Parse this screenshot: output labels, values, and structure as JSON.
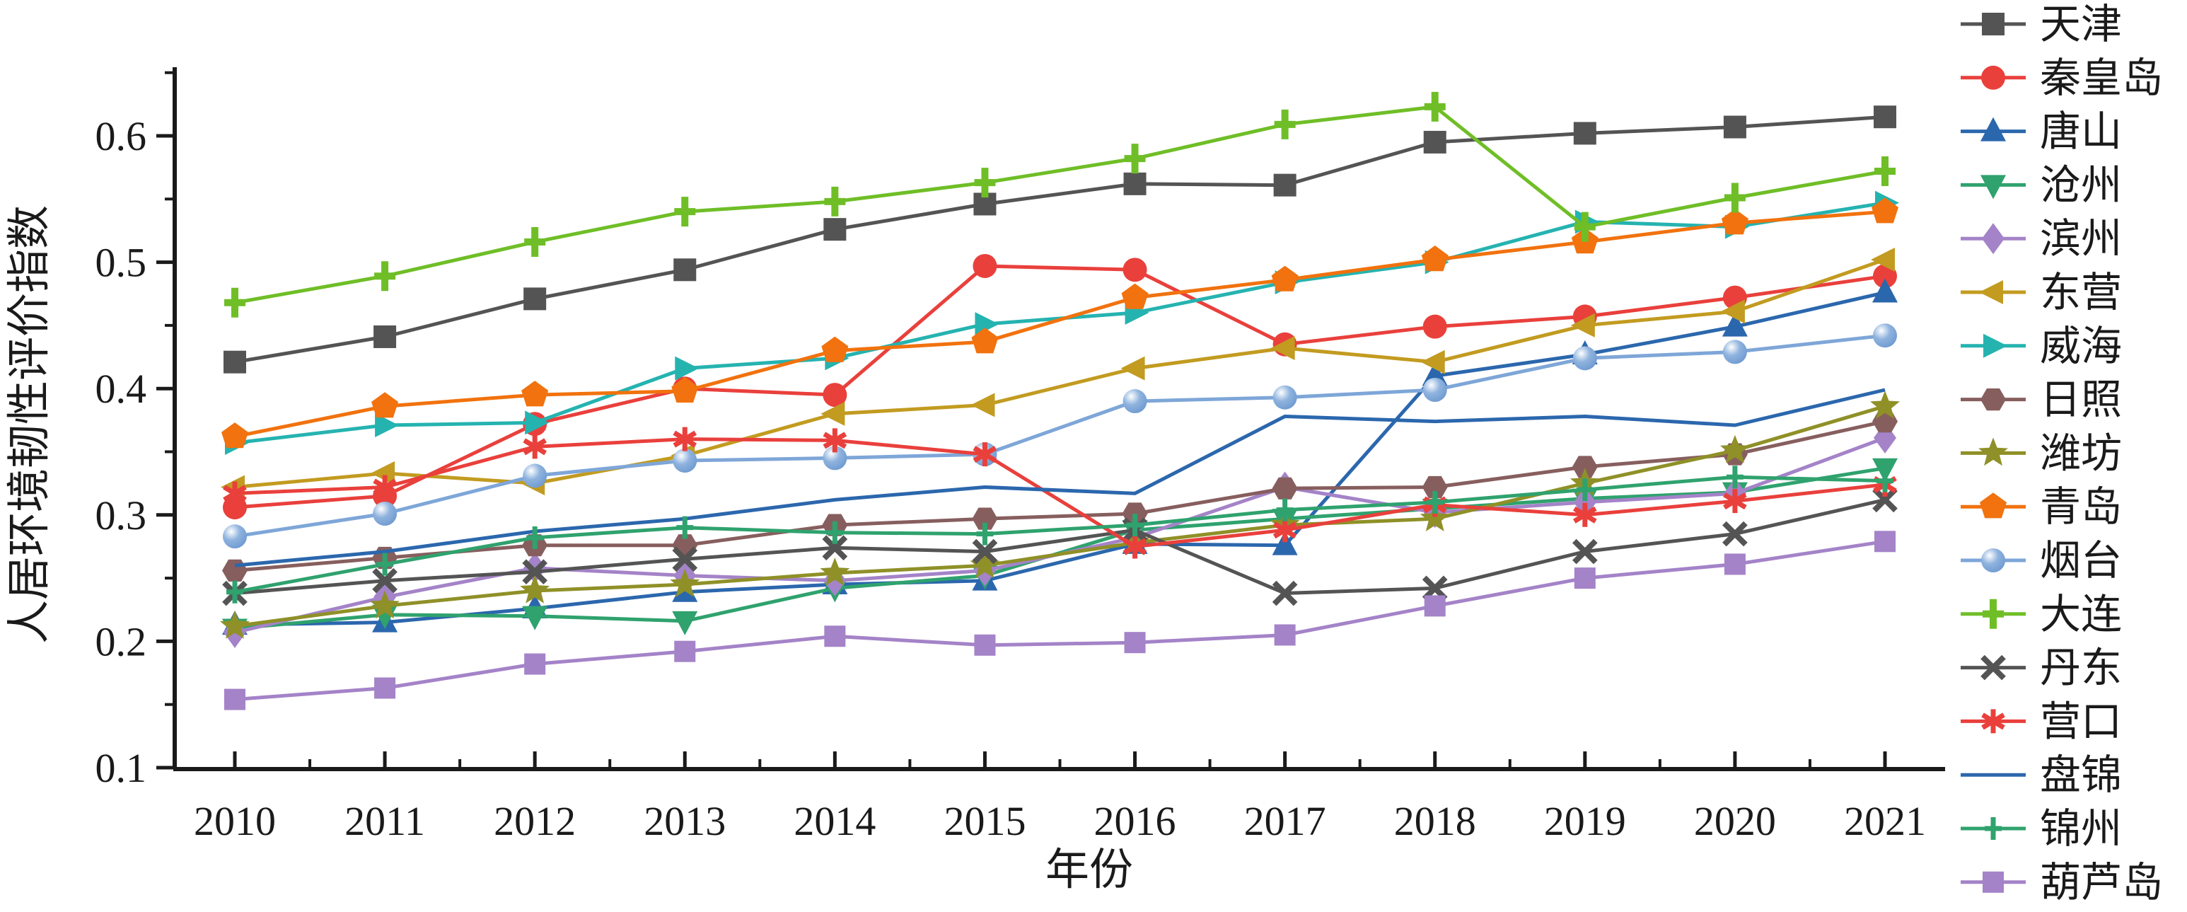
{
  "figure": {
    "background": "#ffffff",
    "axis_color": "#1a1a1a"
  },
  "chart_data": {
    "type": "line",
    "title": "",
    "xlabel": "年份",
    "ylabel": "人居环境韧性评价指数",
    "x": [
      2010,
      2011,
      2012,
      2013,
      2014,
      2015,
      2016,
      2017,
      2018,
      2019,
      2020,
      2021
    ],
    "ylim": [
      0.1,
      0.66
    ],
    "yticks": [
      0.1,
      0.2,
      0.3,
      0.4,
      0.5,
      0.6
    ],
    "ytick_minor_step": 0.05,
    "grid": false,
    "legend_position": "right",
    "series": [
      {
        "name": "天津",
        "color": "#545454",
        "marker": "square",
        "values": [
          0.421,
          0.441,
          0.471,
          0.494,
          0.526,
          0.546,
          0.562,
          0.561,
          0.595,
          0.602,
          0.607,
          0.615
        ]
      },
      {
        "name": "秦皇岛",
        "color": "#e9403c",
        "marker": "circle",
        "values": [
          0.306,
          0.315,
          0.372,
          0.4,
          0.395,
          0.497,
          0.494,
          0.435,
          0.449,
          0.457,
          0.472,
          0.489
        ]
      },
      {
        "name": "唐山",
        "color": "#2b67ad",
        "marker": "triangle-up",
        "values": [
          0.213,
          0.215,
          0.226,
          0.239,
          0.245,
          0.248,
          0.277,
          0.276,
          0.41,
          0.427,
          0.449,
          0.476
        ]
      },
      {
        "name": "沧州",
        "color": "#2fa26e",
        "marker": "triangle-down",
        "values": [
          0.21,
          0.221,
          0.22,
          0.216,
          0.242,
          0.252,
          0.288,
          0.297,
          0.305,
          0.313,
          0.318,
          0.337
        ]
      },
      {
        "name": "滨州",
        "color": "#a483c8",
        "marker": "diamond",
        "values": [
          0.207,
          0.235,
          0.258,
          0.252,
          0.248,
          0.256,
          0.282,
          0.322,
          0.302,
          0.31,
          0.317,
          0.361
        ]
      },
      {
        "name": "东营",
        "color": "#c29b20",
        "marker": "triangle-left",
        "values": [
          0.322,
          0.333,
          0.325,
          0.347,
          0.38,
          0.387,
          0.416,
          0.432,
          0.421,
          0.45,
          0.461,
          0.502
        ]
      },
      {
        "name": "威海",
        "color": "#25b3b0",
        "marker": "triangle-right",
        "values": [
          0.357,
          0.371,
          0.373,
          0.416,
          0.424,
          0.451,
          0.46,
          0.484,
          0.5,
          0.532,
          0.528,
          0.547
        ]
      },
      {
        "name": "日照",
        "color": "#875e5e",
        "marker": "hexagon",
        "values": [
          0.256,
          0.266,
          0.276,
          0.276,
          0.292,
          0.297,
          0.301,
          0.321,
          0.322,
          0.338,
          0.348,
          0.374
        ]
      },
      {
        "name": "潍坊",
        "color": "#8f9027",
        "marker": "star",
        "values": [
          0.212,
          0.228,
          0.24,
          0.245,
          0.254,
          0.26,
          0.278,
          0.292,
          0.297,
          0.325,
          0.351,
          0.386
        ]
      },
      {
        "name": "青岛",
        "color": "#f1720e",
        "marker": "pentagon",
        "values": [
          0.362,
          0.386,
          0.395,
          0.398,
          0.43,
          0.437,
          0.472,
          0.486,
          0.502,
          0.516,
          0.531,
          0.54
        ]
      },
      {
        "name": "烟台",
        "color": "#7ea6d8",
        "marker": "sphere",
        "values": [
          0.283,
          0.301,
          0.331,
          0.343,
          0.345,
          0.348,
          0.39,
          0.393,
          0.399,
          0.424,
          0.429,
          0.442
        ]
      },
      {
        "name": "大连",
        "color": "#6fbe27",
        "marker": "plus-bold",
        "values": [
          0.468,
          0.489,
          0.516,
          0.54,
          0.548,
          0.563,
          0.582,
          0.609,
          0.623,
          0.528,
          0.551,
          0.572
        ]
      },
      {
        "name": "丹东",
        "color": "#545454",
        "marker": "x-cross",
        "values": [
          0.238,
          0.248,
          0.255,
          0.265,
          0.274,
          0.271,
          0.288,
          0.238,
          0.242,
          0.271,
          0.285,
          0.312
        ]
      },
      {
        "name": "营口",
        "color": "#e9403c",
        "marker": "asterisk",
        "values": [
          0.317,
          0.322,
          0.354,
          0.36,
          0.359,
          0.348,
          0.275,
          0.288,
          0.308,
          0.3,
          0.311,
          0.324
        ]
      },
      {
        "name": "盘锦",
        "color": "#2b67ad",
        "marker": "none",
        "values": [
          0.26,
          0.271,
          0.287,
          0.297,
          0.312,
          0.322,
          0.317,
          0.378,
          0.374,
          0.378,
          0.371,
          0.399
        ]
      },
      {
        "name": "锦州",
        "color": "#2fa26e",
        "marker": "plus",
        "values": [
          0.239,
          0.261,
          0.282,
          0.29,
          0.286,
          0.285,
          0.292,
          0.304,
          0.31,
          0.32,
          0.33,
          0.327
        ]
      },
      {
        "name": "葫芦岛",
        "color": "#a483c8",
        "marker": "square-small",
        "values": [
          0.154,
          0.163,
          0.182,
          0.192,
          0.204,
          0.197,
          0.199,
          0.205,
          0.228,
          0.25,
          0.261,
          0.279
        ]
      }
    ]
  }
}
